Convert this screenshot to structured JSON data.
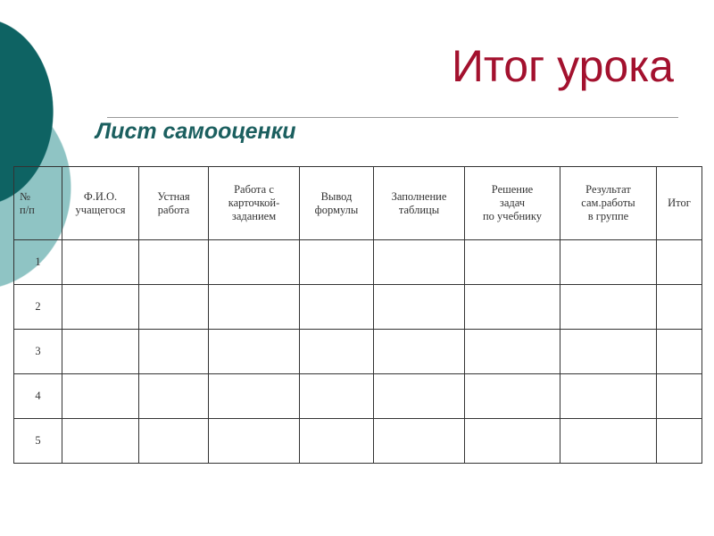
{
  "title": "Итог урока",
  "subtitle": "Лист самооценки",
  "colors": {
    "title": "#a3112e",
    "subtitle": "#1b5f5f",
    "circle_dark": "#0e6363",
    "circle_light": "#8fc4c4"
  },
  "table": {
    "headers": [
      [
        "№",
        "п/п"
      ],
      [
        "Ф.И.О.",
        "учащегося"
      ],
      [
        "Устная",
        "работа"
      ],
      [
        "Работа с",
        "карточкой-",
        "заданием"
      ],
      [
        "Вывод",
        "формулы"
      ],
      [
        "Заполнение",
        "таблицы"
      ],
      [
        "Решение",
        "задач",
        "по учебнику"
      ],
      [
        "Результат",
        "сам.работы",
        "в группе"
      ],
      [
        "Итог"
      ]
    ],
    "rows": [
      "1",
      "2",
      "3",
      "4",
      "5"
    ]
  }
}
